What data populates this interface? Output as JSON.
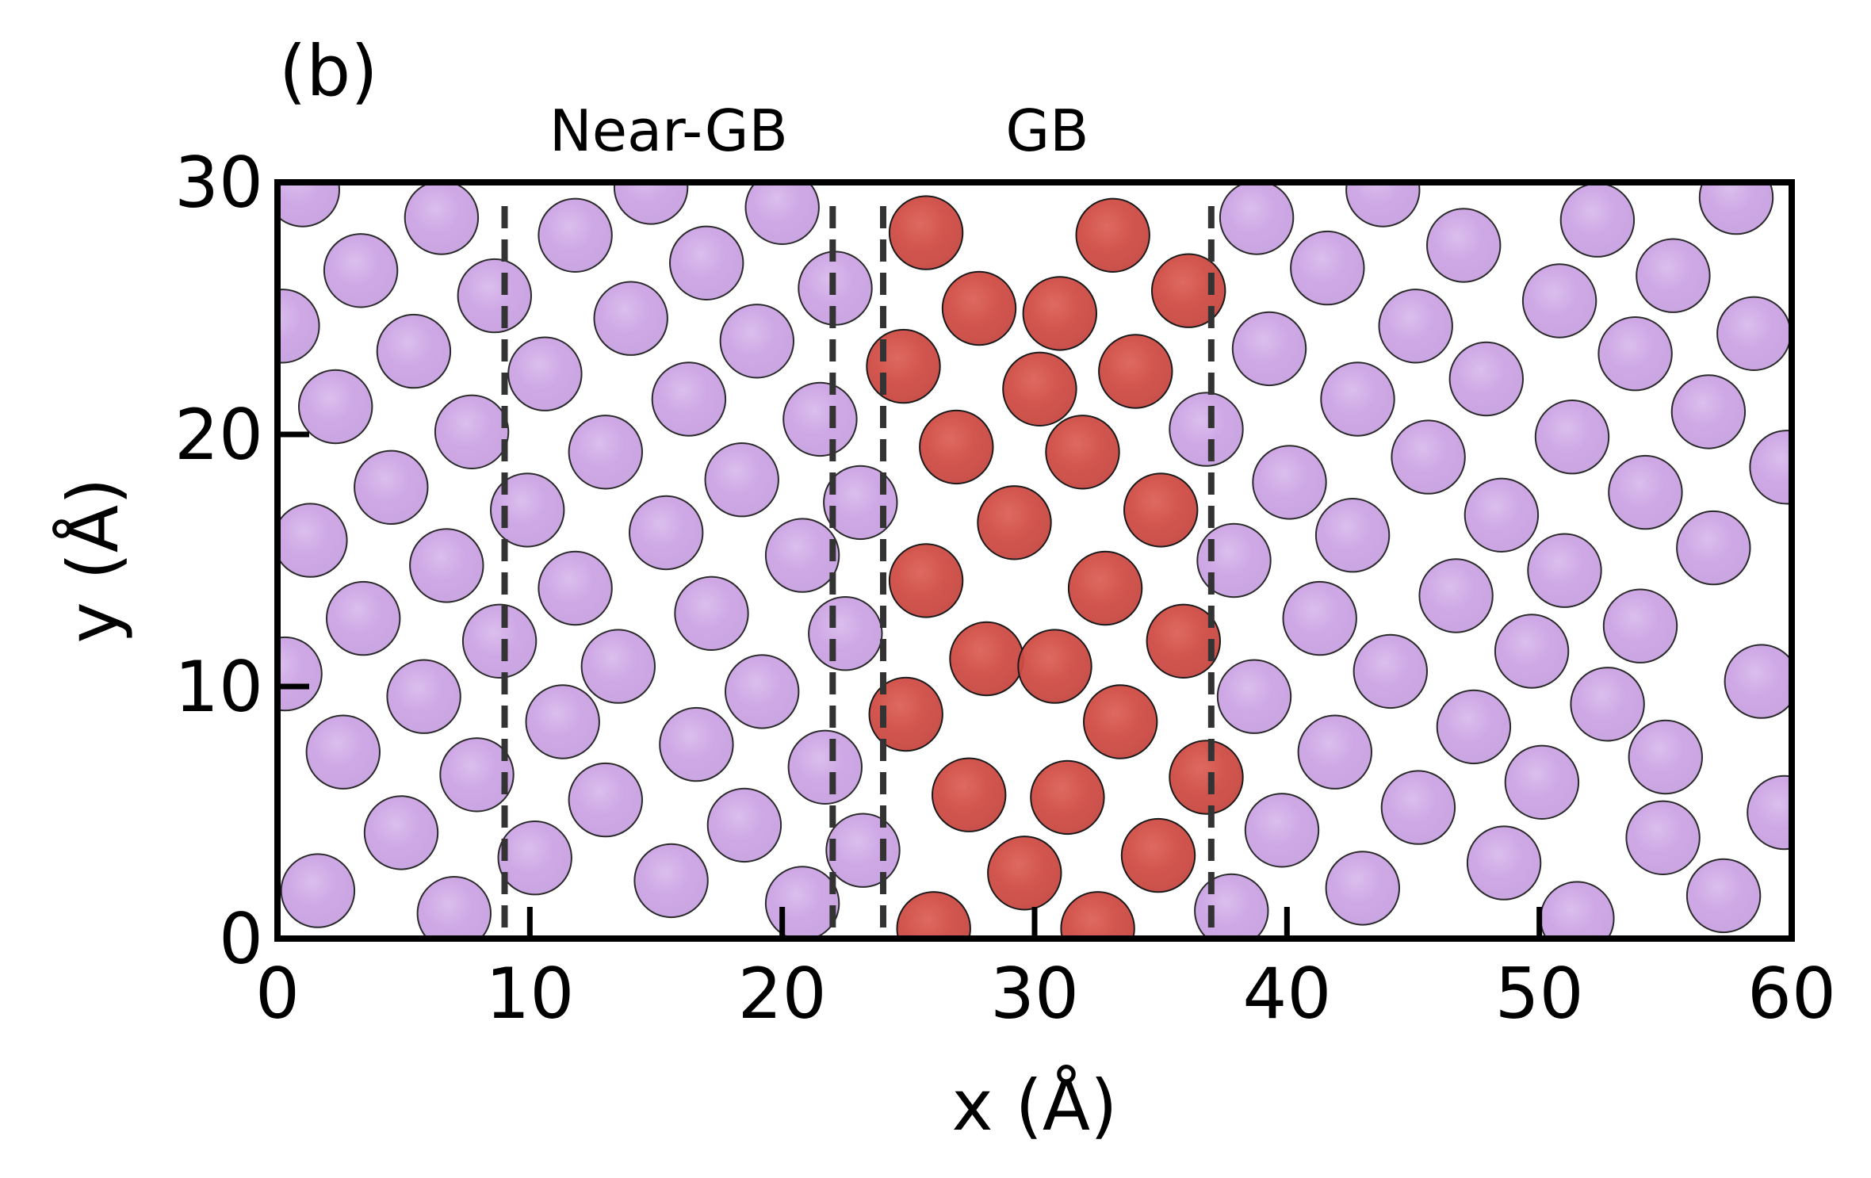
{
  "chart_data": {
    "type": "scatter",
    "panel_label": "(b)",
    "xlabel": "x (Å)",
    "ylabel": "y (Å)",
    "xlim": [
      0,
      60
    ],
    "ylim": [
      0,
      30
    ],
    "xticks": [
      0,
      10,
      20,
      30,
      40,
      50,
      60
    ],
    "yticks": [
      0,
      10,
      20,
      30
    ],
    "grid": false,
    "colors": {
      "bulk": "#cfa8e6",
      "bulk_edge": "#2a2a2a",
      "gb": "#d24f47",
      "gb_edge": "#1a1a1a",
      "divider": "#333333"
    },
    "region_dividers_x": [
      9.0,
      22.0,
      24.0,
      37.0
    ],
    "region_labels": [
      {
        "text": "Near-GB",
        "x": 15.5
      },
      {
        "text": "GB",
        "x": 30.5
      }
    ],
    "atom_radius": 1.45,
    "series": [
      {
        "kind": "bulk",
        "points": [
          [
            1.0,
            29.7
          ],
          [
            6.5,
            28.6
          ],
          [
            14.8,
            29.8
          ],
          [
            20.0,
            29.0
          ],
          [
            43.8,
            29.7
          ],
          [
            52.3,
            28.5
          ],
          [
            57.8,
            29.4
          ],
          [
            3.3,
            26.5
          ],
          [
            11.8,
            27.9
          ],
          [
            17.0,
            26.8
          ],
          [
            38.8,
            28.6
          ],
          [
            41.6,
            26.6
          ],
          [
            47.0,
            27.5
          ],
          [
            55.3,
            26.3
          ],
          [
            8.6,
            25.5
          ],
          [
            14.0,
            24.6
          ],
          [
            22.1,
            25.8
          ],
          [
            19.0,
            23.7
          ],
          [
            45.1,
            24.3
          ],
          [
            50.8,
            25.3
          ],
          [
            58.5,
            24.0
          ],
          [
            0.2,
            24.3
          ],
          [
            5.4,
            23.3
          ],
          [
            10.6,
            22.4
          ],
          [
            16.3,
            21.4
          ],
          [
            21.5,
            20.6
          ],
          [
            39.3,
            23.4
          ],
          [
            42.8,
            21.4
          ],
          [
            47.9,
            22.2
          ],
          [
            53.8,
            23.2
          ],
          [
            2.3,
            21.1
          ],
          [
            7.7,
            20.1
          ],
          [
            13.0,
            19.3
          ],
          [
            18.4,
            18.2
          ],
          [
            36.8,
            20.2
          ],
          [
            45.6,
            19.1
          ],
          [
            51.3,
            19.9
          ],
          [
            56.7,
            20.9
          ],
          [
            4.5,
            17.9
          ],
          [
            9.9,
            17.0
          ],
          [
            23.1,
            17.3
          ],
          [
            40.1,
            18.1
          ],
          [
            48.5,
            16.8
          ],
          [
            54.2,
            17.7
          ],
          [
            59.8,
            18.7
          ],
          [
            1.3,
            15.8
          ],
          [
            6.7,
            14.8
          ],
          [
            15.4,
            16.1
          ],
          [
            20.8,
            15.2
          ],
          [
            37.9,
            15.0
          ],
          [
            42.6,
            16.0
          ],
          [
            51.0,
            14.6
          ],
          [
            56.9,
            15.5
          ],
          [
            3.4,
            12.7
          ],
          [
            8.8,
            11.8
          ],
          [
            11.8,
            13.9
          ],
          [
            17.2,
            12.9
          ],
          [
            22.5,
            12.1
          ],
          [
            41.3,
            12.7
          ],
          [
            46.7,
            13.6
          ],
          [
            54.0,
            12.4
          ],
          [
            0.3,
            10.5
          ],
          [
            5.8,
            9.6
          ],
          [
            13.5,
            10.8
          ],
          [
            19.2,
            9.8
          ],
          [
            38.7,
            9.6
          ],
          [
            44.1,
            10.6
          ],
          [
            49.7,
            11.4
          ],
          [
            52.7,
            9.3
          ],
          [
            58.8,
            10.2
          ],
          [
            2.6,
            7.4
          ],
          [
            7.9,
            6.5
          ],
          [
            11.3,
            8.6
          ],
          [
            16.6,
            7.7
          ],
          [
            21.7,
            6.8
          ],
          [
            41.9,
            7.4
          ],
          [
            47.4,
            8.4
          ],
          [
            55.0,
            7.2
          ],
          [
            4.9,
            4.2
          ],
          [
            13.0,
            5.5
          ],
          [
            18.5,
            4.5
          ],
          [
            23.2,
            3.5
          ],
          [
            39.8,
            4.3
          ],
          [
            45.2,
            5.2
          ],
          [
            50.1,
            6.2
          ],
          [
            54.9,
            4.0
          ],
          [
            59.7,
            5.0
          ],
          [
            1.6,
            1.9
          ],
          [
            7.0,
            1.0
          ],
          [
            10.2,
            3.2
          ],
          [
            15.6,
            2.3
          ],
          [
            20.8,
            1.4
          ],
          [
            37.8,
            1.1
          ],
          [
            43.0,
            2.0
          ],
          [
            48.6,
            3.0
          ],
          [
            51.5,
            0.8
          ],
          [
            57.3,
            1.7
          ]
        ]
      },
      {
        "kind": "gb",
        "points": [
          [
            25.7,
            28.0
          ],
          [
            33.1,
            27.9
          ],
          [
            27.8,
            25.0
          ],
          [
            31.0,
            24.8
          ],
          [
            36.1,
            25.7
          ],
          [
            24.8,
            22.7
          ],
          [
            30.2,
            21.8
          ],
          [
            34.0,
            22.5
          ],
          [
            26.9,
            19.5
          ],
          [
            31.9,
            19.3
          ],
          [
            29.2,
            16.5
          ],
          [
            35.0,
            17.0
          ],
          [
            25.7,
            14.2
          ],
          [
            32.8,
            13.9
          ],
          [
            28.1,
            11.1
          ],
          [
            30.8,
            10.8
          ],
          [
            35.9,
            11.8
          ],
          [
            24.9,
            8.9
          ],
          [
            33.4,
            8.6
          ],
          [
            27.4,
            5.7
          ],
          [
            31.3,
            5.6
          ],
          [
            36.8,
            6.4
          ],
          [
            29.6,
            2.6
          ],
          [
            34.9,
            3.3
          ],
          [
            26.0,
            0.4
          ],
          [
            32.5,
            0.4
          ]
        ]
      }
    ]
  }
}
